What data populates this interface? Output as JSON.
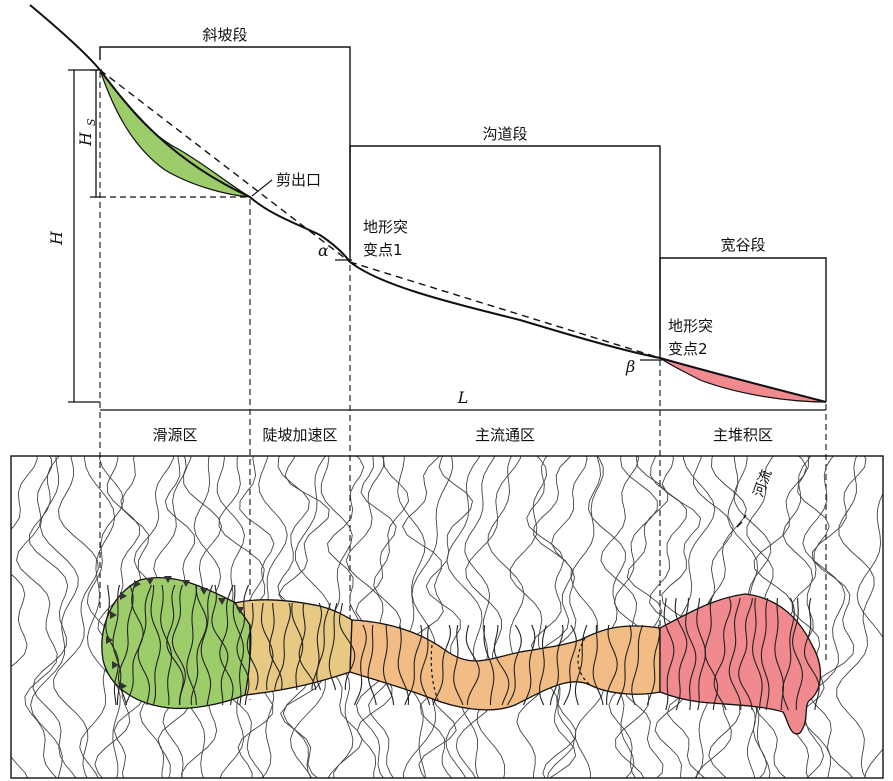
{
  "profile": {
    "segments": {
      "slope": "斜坡段",
      "channel": "沟道段",
      "valley": "宽谷段"
    },
    "points": {
      "shear_outlet": "剪出口",
      "break1_line1": "地形突",
      "break1_line2": "变点1",
      "break2_line1": "地形突",
      "break2_line2": "变点2"
    },
    "symbols": {
      "H": "H",
      "Hs": "H",
      "Hs_sub": "S",
      "L": "L",
      "alpha": "α",
      "beta": "β"
    }
  },
  "zones": {
    "source": "滑源区",
    "accel": "陡坡加速区",
    "flow": "主流通区",
    "deposit": "主堆积区"
  },
  "map": {
    "river": "河流"
  },
  "colors": {
    "source": "#9dcc6b",
    "accel": "#e8c983",
    "flow": "#f2bd85",
    "deposit": "#f08a8f",
    "line": "#111111"
  }
}
